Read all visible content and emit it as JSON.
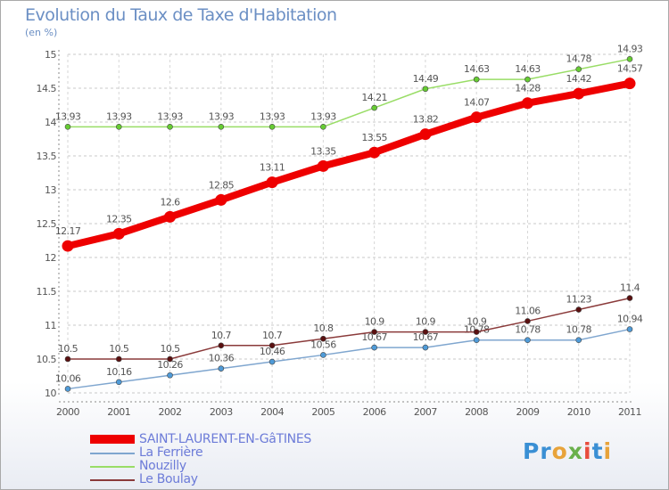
{
  "header": {
    "title": "Evolution du Taux de Taxe d'Habitation",
    "subtitle": "(en %)"
  },
  "logo": {
    "text": "Proxiti",
    "colors": [
      "#3a8fd4",
      "#e8a33a",
      "#6ab04c",
      "#e84c3d"
    ]
  },
  "chart_data": {
    "type": "line",
    "title": "Evolution du Taux de Taxe d'Habitation",
    "subtitle": "(en %)",
    "xlabel": "",
    "ylabel": "(en %)",
    "x": [
      "2000",
      "2001",
      "2002",
      "2003",
      "2004",
      "2005",
      "2006",
      "2007",
      "2008",
      "2009",
      "2010",
      "2011"
    ],
    "ylim": [
      10,
      15
    ],
    "yticks": [
      10,
      10.5,
      11,
      11.5,
      12,
      12.5,
      13,
      13.5,
      14,
      14.5,
      15
    ],
    "ytick_labels": [
      "10",
      "10.5",
      "11",
      "11.5",
      "12",
      "12.5",
      "13",
      "13.5",
      "14",
      "14.5",
      "15"
    ],
    "grid": true,
    "legend_position": "bottom-left",
    "series": [
      {
        "name": "SAINT-LAURENT-EN-GâTINES",
        "color": "#ee0000",
        "point_color": "#ee0000",
        "bold": true,
        "values": [
          12.17,
          12.35,
          12.6,
          12.85,
          13.11,
          13.35,
          13.55,
          13.82,
          14.07,
          14.28,
          14.42,
          14.57
        ],
        "labels": [
          "12.17",
          "12.35",
          "12.6",
          "12.85",
          "13.11",
          "13.35",
          "13.55",
          "13.82",
          "14.07",
          "14.28",
          "14.42",
          "14.57"
        ]
      },
      {
        "name": "La Ferrière",
        "color": "#7fa6cf",
        "point_color": "#4f9bd8",
        "bold": false,
        "values": [
          10.06,
          10.16,
          10.26,
          10.36,
          10.46,
          10.56,
          10.67,
          10.67,
          10.78,
          10.78,
          10.78,
          10.94
        ],
        "labels": [
          "10.06",
          "10.16",
          "10.26",
          "10.36",
          "10.46",
          "10.56",
          "10.67",
          "10.67",
          "10.78",
          "10.78",
          "10.78",
          "10.94"
        ]
      },
      {
        "name": "Nouzilly",
        "color": "#99dd66",
        "point_color": "#66cc33",
        "bold": false,
        "values": [
          13.93,
          13.93,
          13.93,
          13.93,
          13.93,
          13.93,
          14.21,
          14.49,
          14.63,
          14.63,
          14.78,
          14.93
        ],
        "labels": [
          "13.93",
          "13.93",
          "13.93",
          "13.93",
          "13.93",
          "13.93",
          "14.21",
          "14.49",
          "14.63",
          "14.63",
          "14.78",
          "14.93"
        ]
      },
      {
        "name": "Le Boulay",
        "color": "#8a3a3a",
        "point_color": "#5a1010",
        "bold": false,
        "values": [
          10.5,
          10.5,
          10.5,
          10.7,
          10.7,
          10.8,
          10.9,
          10.9,
          10.9,
          11.06,
          11.23,
          11.4
        ],
        "labels": [
          "10.5",
          "10.5",
          "10.5",
          "10.7",
          "10.7",
          "10.8",
          "10.9",
          "10.9",
          "10.9",
          "11.06",
          "11.23",
          "11.4"
        ]
      }
    ]
  }
}
